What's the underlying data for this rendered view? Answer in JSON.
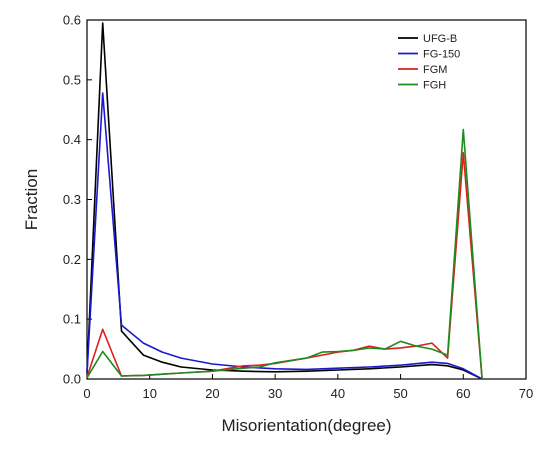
{
  "chart_data": {
    "type": "line",
    "xlabel": "Misorientation(degree)",
    "ylabel": "Fraction",
    "xlim": [
      0,
      70
    ],
    "ylim": [
      0,
      0.6
    ],
    "xticks": [
      0,
      10,
      20,
      30,
      40,
      50,
      60,
      70
    ],
    "yticks": [
      0.0,
      0.1,
      0.2,
      0.3,
      0.4,
      0.5,
      0.6
    ],
    "xtick_labels": [
      "0",
      "10",
      "20",
      "30",
      "40",
      "50",
      "60",
      "70"
    ],
    "ytick_labels": [
      "0.0",
      "0.1",
      "0.2",
      "0.3",
      "0.4",
      "0.5",
      "0.6"
    ],
    "grid": false,
    "legend_position": "top-right",
    "series": [
      {
        "name": "UFG-B",
        "color": "#000000",
        "x": [
          0,
          2.5,
          5.5,
          9,
          12,
          15,
          20,
          25,
          30,
          35,
          40,
          45,
          50,
          55,
          57.5,
          60,
          63
        ],
        "y": [
          0.01,
          0.595,
          0.08,
          0.04,
          0.028,
          0.02,
          0.015,
          0.013,
          0.012,
          0.013,
          0.015,
          0.017,
          0.02,
          0.024,
          0.022,
          0.015,
          0.0
        ]
      },
      {
        "name": "FG-150",
        "color": "#1a1acc",
        "x": [
          0,
          2.5,
          5.5,
          9,
          12,
          15,
          20,
          25,
          30,
          35,
          40,
          45,
          50,
          55,
          57.5,
          60,
          63
        ],
        "y": [
          0.01,
          0.478,
          0.09,
          0.06,
          0.045,
          0.035,
          0.025,
          0.02,
          0.017,
          0.016,
          0.018,
          0.02,
          0.023,
          0.028,
          0.026,
          0.017,
          0.0
        ]
      },
      {
        "name": "FGM",
        "color": "#dd2020",
        "x": [
          0,
          2.5,
          5.5,
          9,
          12,
          15,
          20,
          25,
          27.5,
          30,
          35,
          37.5,
          40,
          42.5,
          45,
          47.5,
          50,
          52.5,
          55,
          57.5,
          60,
          63
        ],
        "y": [
          0.003,
          0.083,
          0.005,
          0.006,
          0.008,
          0.01,
          0.013,
          0.022,
          0.023,
          0.026,
          0.035,
          0.04,
          0.045,
          0.048,
          0.055,
          0.05,
          0.052,
          0.055,
          0.06,
          0.035,
          0.378,
          0.0
        ]
      },
      {
        "name": "FGH",
        "color": "#1f8a1f",
        "x": [
          0,
          2.5,
          5.5,
          9,
          12,
          15,
          20,
          25,
          27.5,
          30,
          35,
          37.5,
          40,
          42.5,
          45,
          47.5,
          50,
          52.5,
          55,
          57.5,
          60,
          63
        ],
        "y": [
          0.002,
          0.046,
          0.005,
          0.006,
          0.008,
          0.01,
          0.013,
          0.018,
          0.02,
          0.027,
          0.035,
          0.045,
          0.046,
          0.048,
          0.052,
          0.05,
          0.063,
          0.055,
          0.05,
          0.04,
          0.417,
          0.0
        ]
      }
    ]
  }
}
